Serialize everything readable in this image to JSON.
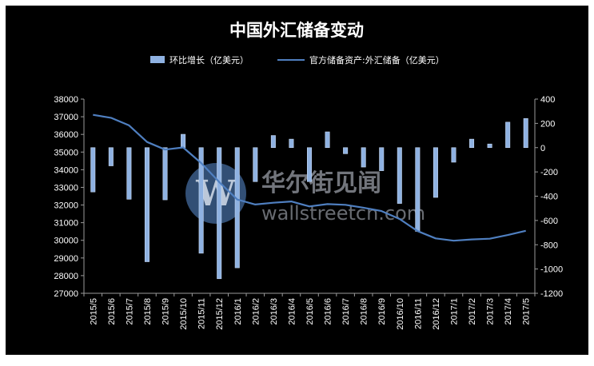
{
  "chart_data": {
    "type": "bar",
    "title": "中国外汇储备变动",
    "categories": [
      "2015/5",
      "2015/6",
      "2015/7",
      "2015/8",
      "2015/9",
      "2015/10",
      "2015/11",
      "2015/12",
      "2016/1",
      "2016/2",
      "2016/3",
      "2016/4",
      "2016/5",
      "2016/6",
      "2016/7",
      "2016/8",
      "2016/9",
      "2016/10",
      "2016/11",
      "2016/12",
      "2017/1",
      "2017/2",
      "2017/3",
      "2017/4",
      "2017/5"
    ],
    "series": [
      {
        "name": "环比增长（亿美元）",
        "type": "bar",
        "axis": "right",
        "color": "#8fb2e2",
        "values": [
          -365,
          -150,
          -425,
          -940,
          -430,
          110,
          -870,
          -1080,
          -990,
          -280,
          100,
          70,
          -280,
          130,
          -50,
          -160,
          -190,
          -460,
          -690,
          -410,
          -120,
          70,
          30,
          210,
          240
        ]
      },
      {
        "name": "官方储备资产:外汇储备（亿美元）",
        "type": "line",
        "axis": "left",
        "color": "#4f7fc0",
        "values": [
          37110,
          36940,
          36510,
          35570,
          35140,
          35260,
          34380,
          33300,
          32310,
          32030,
          32130,
          32200,
          31920,
          32050,
          32010,
          31850,
          31660,
          31210,
          30520,
          30110,
          29980,
          30050,
          30090,
          30300,
          30540
        ]
      }
    ],
    "y_left": {
      "min": 27000,
      "max": 38000,
      "step": 1000
    },
    "y_right": {
      "min": -1200,
      "max": 400,
      "step": 200
    },
    "grid": false,
    "legend_position": "top"
  },
  "watermark": {
    "brand_cn": "华尔街见闻",
    "brand_en": "wallstreetcn.com"
  },
  "colors": {
    "background": "#000000",
    "text": "#ffffff",
    "bar": "#8fb2e2",
    "line": "#4f7fc0"
  }
}
